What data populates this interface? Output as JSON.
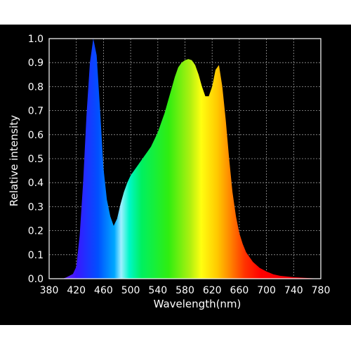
{
  "chart_data": {
    "type": "area",
    "title": "",
    "xlabel": "Wavelength(nm)",
    "ylabel": "Relative intensity",
    "xlim": [
      380,
      780
    ],
    "ylim": [
      0,
      1.0
    ],
    "x_ticks": [
      "380",
      "420",
      "460",
      "500",
      "540",
      "580",
      "620",
      "660",
      "700",
      "740",
      "780"
    ],
    "y_ticks": [
      "0.0",
      "0.1",
      "0.2",
      "0.3",
      "0.4",
      "0.5",
      "0.6",
      "0.7",
      "0.8",
      "0.9",
      "1.0"
    ],
    "grid": true,
    "x": [
      380,
      400,
      405,
      415,
      420,
      425,
      430,
      435,
      440,
      445,
      450,
      455,
      460,
      465,
      470,
      475,
      480,
      485,
      490,
      495,
      500,
      505,
      510,
      515,
      520,
      525,
      530,
      535,
      540,
      545,
      550,
      555,
      560,
      565,
      570,
      575,
      580,
      585,
      590,
      595,
      600,
      605,
      610,
      615,
      620,
      625,
      630,
      635,
      640,
      645,
      650,
      655,
      660,
      665,
      670,
      680,
      690,
      700,
      710,
      720,
      740,
      760,
      780
    ],
    "values": [
      0.0,
      0.0,
      0.005,
      0.02,
      0.05,
      0.18,
      0.4,
      0.68,
      0.9,
      1.0,
      0.93,
      0.7,
      0.46,
      0.33,
      0.26,
      0.22,
      0.25,
      0.31,
      0.36,
      0.4,
      0.43,
      0.45,
      0.47,
      0.49,
      0.51,
      0.53,
      0.55,
      0.58,
      0.61,
      0.65,
      0.69,
      0.74,
      0.79,
      0.84,
      0.88,
      0.9,
      0.91,
      0.915,
      0.91,
      0.89,
      0.85,
      0.8,
      0.76,
      0.76,
      0.8,
      0.87,
      0.89,
      0.8,
      0.66,
      0.5,
      0.36,
      0.26,
      0.19,
      0.145,
      0.11,
      0.07,
      0.045,
      0.03,
      0.018,
      0.012,
      0.006,
      0.003,
      0.0
    ],
    "colors": {
      "background": "#000000",
      "axis": "#ffffff",
      "grid": "#9a9a9a",
      "text": "#ffffff"
    }
  }
}
